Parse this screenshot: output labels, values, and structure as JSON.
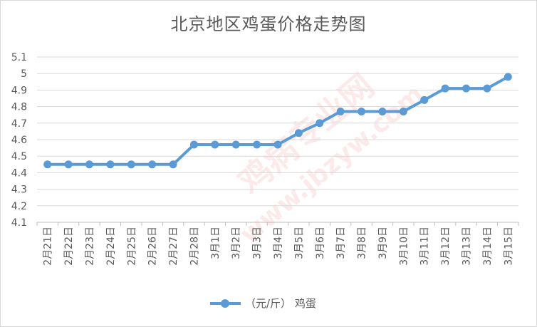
{
  "chart_data": {
    "type": "line",
    "title": "北京地区鸡蛋价格走势图",
    "xlabel": "",
    "ylabel": "",
    "ylim": [
      4.1,
      5.1
    ],
    "y_ticks": [
      "4.1",
      "4.2",
      "4.3",
      "4.4",
      "4.5",
      "4.6",
      "4.7",
      "4.8",
      "4.9",
      "5",
      "5.1"
    ],
    "grid": true,
    "legend_position": "bottom",
    "categories": [
      "2月21日",
      "2月22日",
      "2月23日",
      "2月24日",
      "2月25日",
      "2月26日",
      "2月27日",
      "2月28日",
      "3月1日",
      "3月2日",
      "3月3日",
      "3月4日",
      "3月5日",
      "3月6日",
      "3月7日",
      "3月8日",
      "3月9日",
      "3月10日",
      "3月11日",
      "3月12日",
      "3月13日",
      "3月14日",
      "3月15日"
    ],
    "series": [
      {
        "name": "（元/斤） 鸡蛋",
        "color": "#5b9bd5",
        "values": [
          4.45,
          4.45,
          4.45,
          4.45,
          4.45,
          4.45,
          4.45,
          4.57,
          4.57,
          4.57,
          4.57,
          4.57,
          4.64,
          4.7,
          4.77,
          4.77,
          4.77,
          4.77,
          4.84,
          4.91,
          4.91,
          4.91,
          4.98
        ]
      }
    ]
  },
  "watermark": {
    "text": "鸡病专业网",
    "url": "www.jbzyw.com"
  }
}
